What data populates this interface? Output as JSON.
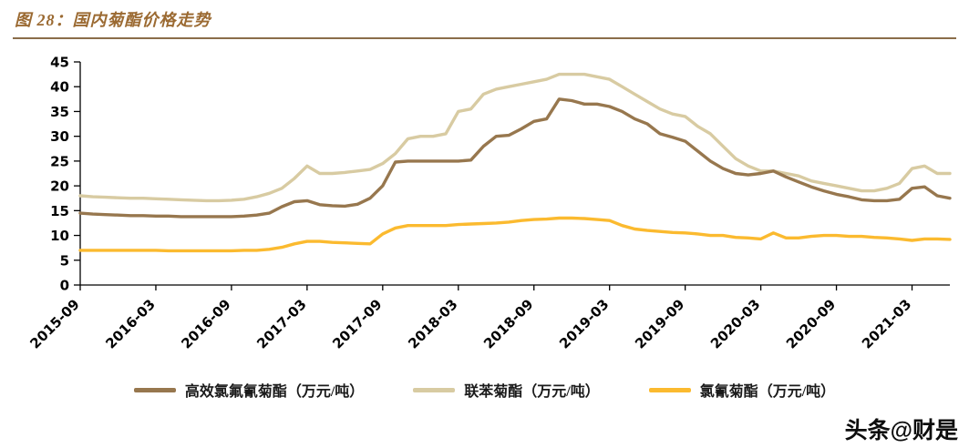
{
  "header": {
    "title": "图 28：国内菊酯价格走势"
  },
  "footer": {
    "watermark": "头条@财是"
  },
  "colors": {
    "title": "#9B6A32",
    "divider": "#8A6D4A",
    "axis": "#000000",
    "series_brown": "#97774E",
    "series_beige": "#D8CBA2",
    "series_yellow": "#FBBA2F"
  },
  "chart_data": {
    "type": "line",
    "title": "国内菊酯价格走势",
    "xlabel": "",
    "ylabel": "",
    "ylim": [
      0,
      45
    ],
    "yticks": [
      0,
      5,
      10,
      15,
      20,
      25,
      30,
      35,
      40,
      45
    ],
    "grid": false,
    "legend_position": "bottom",
    "xticks": [
      {
        "pos": 0,
        "label": "2015-09"
      },
      {
        "pos": 6,
        "label": "2016-03"
      },
      {
        "pos": 12,
        "label": "2016-09"
      },
      {
        "pos": 18,
        "label": "2017-03"
      },
      {
        "pos": 24,
        "label": "2017-09"
      },
      {
        "pos": 30,
        "label": "2018-03"
      },
      {
        "pos": 36,
        "label": "2018-09"
      },
      {
        "pos": 42,
        "label": "2019-03"
      },
      {
        "pos": 48,
        "label": "2019-09"
      },
      {
        "pos": 54,
        "label": "2020-03"
      },
      {
        "pos": 60,
        "label": "2020-09"
      },
      {
        "pos": 66,
        "label": "2021-03"
      }
    ],
    "x_months": [
      "2015-09",
      "2015-10",
      "2015-11",
      "2015-12",
      "2016-01",
      "2016-02",
      "2016-03",
      "2016-04",
      "2016-05",
      "2016-06",
      "2016-07",
      "2016-08",
      "2016-09",
      "2016-10",
      "2016-11",
      "2016-12",
      "2017-01",
      "2017-02",
      "2017-03",
      "2017-04",
      "2017-05",
      "2017-06",
      "2017-07",
      "2017-08",
      "2017-09",
      "2017-10",
      "2017-11",
      "2017-12",
      "2018-01",
      "2018-02",
      "2018-03",
      "2018-04",
      "2018-05",
      "2018-06",
      "2018-07",
      "2018-08",
      "2018-09",
      "2018-10",
      "2018-11",
      "2018-12",
      "2019-01",
      "2019-02",
      "2019-03",
      "2019-04",
      "2019-05",
      "2019-06",
      "2019-07",
      "2019-08",
      "2019-09",
      "2019-10",
      "2019-11",
      "2019-12",
      "2020-01",
      "2020-02",
      "2020-03",
      "2020-04",
      "2020-05",
      "2020-06",
      "2020-07",
      "2020-08",
      "2020-09",
      "2020-10",
      "2020-11",
      "2020-12",
      "2021-01",
      "2021-02",
      "2021-03",
      "2021-04",
      "2021-05",
      "2021-06"
    ],
    "series": [
      {
        "name": "高效氯氟氰菊酯（万元/吨）",
        "color": "#97774E",
        "values": [
          14.5,
          14.3,
          14.2,
          14.1,
          14.0,
          14.0,
          13.9,
          13.9,
          13.8,
          13.8,
          13.8,
          13.8,
          13.8,
          13.9,
          14.1,
          14.5,
          15.8,
          16.8,
          17.0,
          16.2,
          16.0,
          15.9,
          16.3,
          17.5,
          20.0,
          24.8,
          25.0,
          25.0,
          25.0,
          25.0,
          25.0,
          25.2,
          28.0,
          30.0,
          30.2,
          31.5,
          33.0,
          33.5,
          37.5,
          37.2,
          36.5,
          36.5,
          36.0,
          35.0,
          33.5,
          32.5,
          30.5,
          29.8,
          29.0,
          27.0,
          25.0,
          23.5,
          22.5,
          22.2,
          22.5,
          23.0,
          21.8,
          20.8,
          19.8,
          19.0,
          18.3,
          17.8,
          17.2,
          17.0,
          17.0,
          17.3,
          19.5,
          19.8,
          18.0,
          17.5
        ]
      },
      {
        "name": "联苯菊酯（万元/吨）",
        "color": "#D8CBA2",
        "values": [
          18.0,
          17.8,
          17.7,
          17.6,
          17.5,
          17.5,
          17.4,
          17.3,
          17.2,
          17.1,
          17.0,
          17.0,
          17.1,
          17.3,
          17.8,
          18.5,
          19.5,
          21.5,
          24.0,
          22.5,
          22.5,
          22.7,
          23.0,
          23.3,
          24.5,
          26.5,
          29.5,
          30.0,
          30.0,
          30.5,
          35.0,
          35.5,
          38.5,
          39.5,
          40.0,
          40.5,
          41.0,
          41.5,
          42.5,
          42.5,
          42.5,
          42.0,
          41.5,
          40.0,
          38.5,
          37.0,
          35.5,
          34.5,
          34.0,
          32.0,
          30.5,
          28.0,
          25.5,
          24.0,
          23.0,
          23.0,
          22.5,
          22.0,
          21.0,
          20.5,
          20.0,
          19.5,
          19.0,
          19.0,
          19.5,
          20.5,
          23.5,
          24.0,
          22.5,
          22.5
        ]
      },
      {
        "name": "氯氰菊酯（万元/吨）",
        "color": "#FBBA2F",
        "values": [
          7.0,
          7.0,
          7.0,
          7.0,
          7.0,
          7.0,
          7.0,
          6.9,
          6.9,
          6.9,
          6.9,
          6.9,
          6.9,
          7.0,
          7.0,
          7.2,
          7.6,
          8.3,
          8.8,
          8.8,
          8.6,
          8.5,
          8.4,
          8.3,
          10.3,
          11.5,
          12.0,
          12.0,
          12.0,
          12.0,
          12.2,
          12.3,
          12.4,
          12.5,
          12.7,
          13.0,
          13.2,
          13.3,
          13.5,
          13.5,
          13.4,
          13.2,
          13.0,
          12.0,
          11.3,
          11.0,
          10.8,
          10.6,
          10.5,
          10.3,
          10.0,
          10.0,
          9.6,
          9.5,
          9.3,
          10.5,
          9.5,
          9.5,
          9.8,
          10.0,
          10.0,
          9.8,
          9.8,
          9.6,
          9.5,
          9.3,
          9.0,
          9.3,
          9.3,
          9.2
        ]
      }
    ]
  }
}
